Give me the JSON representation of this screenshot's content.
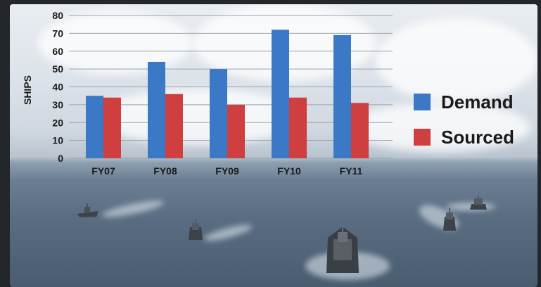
{
  "chart_data": {
    "type": "bar",
    "title": "",
    "xlabel": "",
    "ylabel": "SHIPS",
    "ylim": [
      0,
      80
    ],
    "yticks": [
      0,
      10,
      20,
      30,
      40,
      50,
      60,
      70,
      80
    ],
    "categories": [
      "FY07",
      "FY08",
      "FY09",
      "FY10",
      "FY11"
    ],
    "series": [
      {
        "name": "Demand",
        "values": [
          35,
          54,
          50,
          72,
          69
        ],
        "color": "#3b78c6"
      },
      {
        "name": "Sourced",
        "values": [
          34,
          36,
          30,
          34,
          31
        ],
        "color": "#cf3f3f"
      }
    ],
    "grid": true,
    "legend_position": "right"
  },
  "background": {
    "subject": "naval ships at sea"
  }
}
